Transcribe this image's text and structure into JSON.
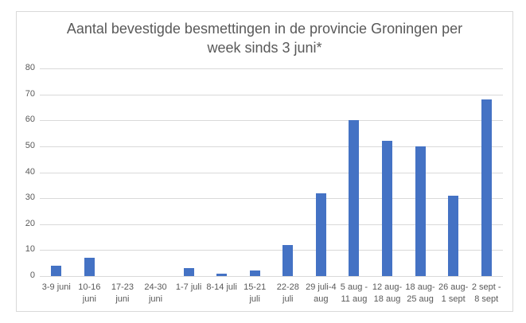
{
  "chart_data": {
    "type": "bar",
    "title": "Aantal bevestigde besmettingen in de provincie Groningen per week sinds 3 juni*",
    "title_lines": [
      "Aantal bevestigde besmettingen in de provincie Groningen per",
      "week sinds 3 juni*"
    ],
    "xlabel": "",
    "ylabel": "",
    "ylim": [
      0,
      80
    ],
    "yticks": [
      0,
      10,
      20,
      30,
      40,
      50,
      60,
      70,
      80
    ],
    "grid": true,
    "legend": null,
    "color": "#4472c4",
    "categories": [
      "3-9 juni",
      "10-16 juni",
      "17-23 juni",
      "24-30 juni",
      "1-7 juli",
      "8-14 juli",
      "15-21 juli",
      "22-28 juli",
      "29 juli-4 aug",
      "5 aug - 11 aug",
      "12 aug- 18 aug",
      "18 aug- 25 aug",
      "26 aug- 1 sept",
      "2 sept - 8 sept"
    ],
    "category_lines": [
      [
        "3-9 juni",
        ""
      ],
      [
        "10-16",
        "juni"
      ],
      [
        "17-23",
        "juni"
      ],
      [
        "24-30",
        "juni"
      ],
      [
        "1-7 juli",
        ""
      ],
      [
        "8-14 juli",
        ""
      ],
      [
        "15-21",
        "juli"
      ],
      [
        "22-28",
        "juli"
      ],
      [
        "29 juli-4",
        "aug"
      ],
      [
        "5 aug -",
        "11 aug"
      ],
      [
        "12 aug-",
        "18 aug"
      ],
      [
        "18 aug-",
        "25 aug"
      ],
      [
        "26 aug-",
        "1 sept"
      ],
      [
        "2 sept -",
        "8 sept"
      ]
    ],
    "values": [
      4,
      7,
      0,
      0,
      3,
      1,
      2,
      12,
      32,
      60,
      52,
      50,
      31,
      68
    ]
  }
}
